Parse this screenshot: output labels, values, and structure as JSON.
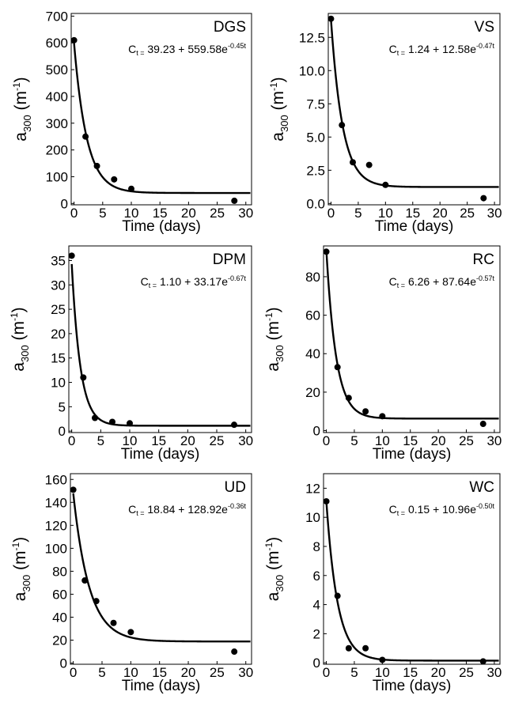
{
  "chart_data": [
    {
      "type": "scatter",
      "site": "DGS",
      "equation": {
        "prefix": "C",
        "sub": "t =",
        "main": " 39.23 + 559.58e",
        "exp": "-0.45t"
      },
      "fit": {
        "c": 39.23,
        "a": 559.58,
        "k": 0.45
      },
      "x": [
        0,
        2,
        4,
        7,
        10,
        28
      ],
      "y": [
        610,
        250,
        140,
        90,
        55,
        10
      ],
      "xlim": [
        -0.5,
        31
      ],
      "ylim": [
        -5,
        710
      ],
      "xticks": [
        0,
        5,
        10,
        15,
        20,
        25,
        30
      ],
      "yticks": [
        0,
        100,
        200,
        300,
        400,
        500,
        600,
        700
      ],
      "yticklabels": [
        "0",
        "100",
        "200",
        "300",
        "400",
        "500",
        "600",
        "700"
      ],
      "xlabel": "Time (days)",
      "ylabel": {
        "base": "a",
        "sub": "300",
        "mid": " (m",
        "sup": "-1",
        "end": ")"
      }
    },
    {
      "type": "scatter",
      "site": "VS",
      "equation": {
        "prefix": "C",
        "sub": "t =",
        "main": " 1.24 + 12.58e",
        "exp": "-0.47t"
      },
      "fit": {
        "c": 1.24,
        "a": 12.58,
        "k": 0.47
      },
      "x": [
        0,
        2,
        4,
        7,
        10,
        28
      ],
      "y": [
        13.9,
        5.9,
        3.1,
        2.9,
        1.4,
        0.4
      ],
      "xlim": [
        -0.5,
        31
      ],
      "ylim": [
        -0.1,
        14.3
      ],
      "xticks": [
        0,
        5,
        10,
        15,
        20,
        25,
        30
      ],
      "yticks": [
        0,
        2.5,
        5,
        7.5,
        10,
        12.5
      ],
      "yticklabels": [
        "0.0",
        "2.5",
        "5.0",
        "7.5",
        "10.0",
        "12.5"
      ],
      "xlabel": "Time (days)",
      "ylabel": {
        "base": "a",
        "sub": "300",
        "mid": " (m",
        "sup": "-1",
        "end": ")"
      }
    },
    {
      "type": "scatter",
      "site": "DPM",
      "equation": {
        "prefix": "C",
        "sub": "t =",
        "main": " 1.10 + 33.17e",
        "exp": "-0.67t"
      },
      "fit": {
        "c": 1.1,
        "a": 33.17,
        "k": 0.67
      },
      "x": [
        0,
        2,
        4,
        7,
        10,
        28
      ],
      "y": [
        36,
        11,
        2.7,
        1.9,
        1.6,
        1.3
      ],
      "xlim": [
        -0.5,
        31
      ],
      "ylim": [
        -0.3,
        38
      ],
      "xticks": [
        0,
        5,
        10,
        15,
        20,
        25,
        30
      ],
      "yticks": [
        0,
        5,
        10,
        15,
        20,
        25,
        30,
        35
      ],
      "yticklabels": [
        "0",
        "5",
        "10",
        "15",
        "20",
        "25",
        "30",
        "35"
      ],
      "xlabel": "Time (days)",
      "ylabel": {
        "base": "a",
        "sub": "300",
        "mid": " (m",
        "sup": "-1",
        "end": ")"
      }
    },
    {
      "type": "scatter",
      "site": "RC",
      "equation": {
        "prefix": "C",
        "sub": "t =",
        "main": " 6.26 + 87.64e",
        "exp": "-0.57t"
      },
      "fit": {
        "c": 6.26,
        "a": 87.64,
        "k": 0.57
      },
      "x": [
        0,
        2,
        4,
        7,
        10,
        28
      ],
      "y": [
        93,
        33,
        17,
        10,
        7.5,
        3.5
      ],
      "xlim": [
        -0.5,
        31
      ],
      "ylim": [
        -1,
        96
      ],
      "xticks": [
        0,
        5,
        10,
        15,
        20,
        25,
        30
      ],
      "yticks": [
        0,
        20,
        40,
        60,
        80
      ],
      "yticklabels": [
        "0",
        "20",
        "40",
        "60",
        "80"
      ],
      "xlabel": "Time (days)",
      "ylabel": {
        "base": "a",
        "sub": "300",
        "mid": " (m",
        "sup": "-1",
        "end": ")"
      }
    },
    {
      "type": "scatter",
      "site": "UD",
      "equation": {
        "prefix": "C",
        "sub": "t =",
        "main": " 18.84 + 128.92e",
        "exp": "-0.36t"
      },
      "fit": {
        "c": 18.84,
        "a": 128.92,
        "k": 0.36
      },
      "x": [
        0,
        2,
        4,
        7,
        10,
        28
      ],
      "y": [
        151,
        72,
        54,
        35,
        27,
        10
      ],
      "xlim": [
        -0.5,
        31
      ],
      "ylim": [
        -1,
        165
      ],
      "xticks": [
        0,
        5,
        10,
        15,
        20,
        25,
        30
      ],
      "yticks": [
        0,
        20,
        40,
        60,
        80,
        100,
        120,
        140,
        160
      ],
      "yticklabels": [
        "0",
        "20",
        "40",
        "60",
        "80",
        "100",
        "120",
        "140",
        "160"
      ],
      "xlabel": "Time (days)",
      "ylabel": {
        "base": "a",
        "sub": "300",
        "mid": " (m",
        "sup": "-1",
        "end": ")"
      }
    },
    {
      "type": "scatter",
      "site": "WC",
      "equation": {
        "prefix": "C",
        "sub": "t =",
        "main": " 0.15 + 10.96e",
        "exp": "-0.50t"
      },
      "fit": {
        "c": 0.15,
        "a": 10.96,
        "k": 0.5
      },
      "x": [
        0,
        2,
        4,
        7,
        10,
        28
      ],
      "y": [
        11.1,
        4.6,
        1.0,
        1.0,
        0.2,
        0.1
      ],
      "xlim": [
        -0.5,
        31
      ],
      "ylim": [
        -0.1,
        13
      ],
      "xticks": [
        0,
        5,
        10,
        15,
        20,
        25,
        30
      ],
      "yticks": [
        0,
        2,
        4,
        6,
        8,
        10,
        12
      ],
      "yticklabels": [
        "0",
        "2",
        "4",
        "6",
        "8",
        "10",
        "12"
      ],
      "xlabel": "Time (days)",
      "ylabel": {
        "base": "a",
        "sub": "300",
        "mid": " (m",
        "sup": "-1",
        "end": ")"
      }
    }
  ]
}
